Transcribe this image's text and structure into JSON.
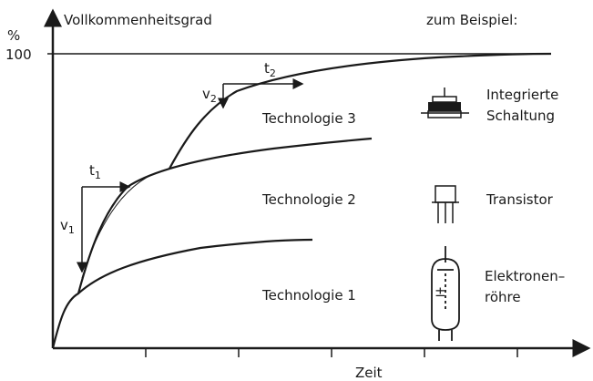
{
  "header": {
    "y_label": "Vollkommenheitsgrad",
    "y_unit": "%",
    "y_max_label": "100",
    "example_label": "zum Beispiel:"
  },
  "x_label": "Zeit",
  "curves": [
    {
      "label": "Technologie 1",
      "example": [
        "Elektronen–",
        "röhre"
      ]
    },
    {
      "label": "Technologie 2",
      "example": [
        "Transistor"
      ]
    },
    {
      "label": "Technologie 3",
      "example": [
        "Integrierte",
        "Schaltung"
      ]
    }
  ],
  "markers": [
    {
      "letter": "v",
      "sub": "1"
    },
    {
      "letter": "t",
      "sub": "1"
    },
    {
      "letter": "v",
      "sub": "2"
    },
    {
      "letter": "t",
      "sub": "2"
    }
  ]
}
